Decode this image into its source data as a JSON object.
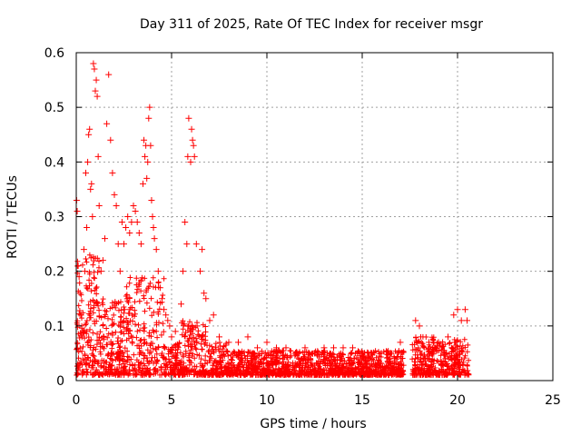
{
  "chart_data": {
    "type": "scatter",
    "title": "Day 311 of 2025, Rate Of TEC Index for receiver msgr",
    "xlabel": "GPS time / hours",
    "ylabel": "ROTI / TECUs",
    "xlim": [
      0,
      25
    ],
    "ylim": [
      0,
      0.6
    ],
    "x_ticks": [
      0,
      5,
      10,
      15,
      20,
      25
    ],
    "x_tick_labels": [
      "0",
      "5",
      "10",
      "15",
      "20",
      "25"
    ],
    "y_ticks": [
      0,
      0.1,
      0.2,
      0.3,
      0.4,
      0.5,
      0.6
    ],
    "y_tick_labels": [
      "0",
      "0.1",
      "0.2",
      "0.3",
      "0.4",
      "0.5",
      "0.6"
    ],
    "grid": true,
    "marker": "+",
    "marker_color": "#ff0000",
    "series": [
      {
        "name": "ROTI",
        "points": [
          [
            0.02,
            0.33
          ],
          [
            0.05,
            0.31
          ],
          [
            0.1,
            0.21
          ],
          [
            0.15,
            0.19
          ],
          [
            0.2,
            0.16
          ],
          [
            0.25,
            0.12
          ],
          [
            0.3,
            0.08
          ],
          [
            0.35,
            0.09
          ],
          [
            0.4,
            0.24
          ],
          [
            0.45,
            0.2
          ],
          [
            0.5,
            0.38
          ],
          [
            0.55,
            0.28
          ],
          [
            0.6,
            0.4
          ],
          [
            0.65,
            0.45
          ],
          [
            0.7,
            0.46
          ],
          [
            0.75,
            0.35
          ],
          [
            0.8,
            0.36
          ],
          [
            0.85,
            0.3
          ],
          [
            0.9,
            0.58
          ],
          [
            0.95,
            0.57
          ],
          [
            1.0,
            0.53
          ],
          [
            1.05,
            0.55
          ],
          [
            1.1,
            0.52
          ],
          [
            1.15,
            0.41
          ],
          [
            1.2,
            0.32
          ],
          [
            1.3,
            0.2
          ],
          [
            1.4,
            0.22
          ],
          [
            1.5,
            0.26
          ],
          [
            1.6,
            0.47
          ],
          [
            1.7,
            0.56
          ],
          [
            1.8,
            0.44
          ],
          [
            1.9,
            0.38
          ],
          [
            2.0,
            0.34
          ],
          [
            2.1,
            0.32
          ],
          [
            2.2,
            0.25
          ],
          [
            2.3,
            0.2
          ],
          [
            2.4,
            0.29
          ],
          [
            2.5,
            0.25
          ],
          [
            2.6,
            0.28
          ],
          [
            2.7,
            0.3
          ],
          [
            2.8,
            0.27
          ],
          [
            2.9,
            0.29
          ],
          [
            3.0,
            0.32
          ],
          [
            3.1,
            0.31
          ],
          [
            3.2,
            0.29
          ],
          [
            3.3,
            0.27
          ],
          [
            3.4,
            0.25
          ],
          [
            3.5,
            0.36
          ],
          [
            3.55,
            0.44
          ],
          [
            3.6,
            0.41
          ],
          [
            3.65,
            0.43
          ],
          [
            3.7,
            0.37
          ],
          [
            3.75,
            0.4
          ],
          [
            3.8,
            0.48
          ],
          [
            3.85,
            0.5
          ],
          [
            3.9,
            0.43
          ],
          [
            3.95,
            0.33
          ],
          [
            4.0,
            0.3
          ],
          [
            4.05,
            0.28
          ],
          [
            4.1,
            0.26
          ],
          [
            4.2,
            0.24
          ],
          [
            4.3,
            0.2
          ],
          [
            4.4,
            0.17
          ],
          [
            4.5,
            0.15
          ],
          [
            4.6,
            0.13
          ],
          [
            4.7,
            0.12
          ],
          [
            4.8,
            0.11
          ],
          [
            4.9,
            0.1
          ],
          [
            5.0,
            0.08
          ],
          [
            5.2,
            0.09
          ],
          [
            5.5,
            0.14
          ],
          [
            5.6,
            0.2
          ],
          [
            5.7,
            0.29
          ],
          [
            5.8,
            0.25
          ],
          [
            5.85,
            0.41
          ],
          [
            5.9,
            0.48
          ],
          [
            6.0,
            0.4
          ],
          [
            6.05,
            0.46
          ],
          [
            6.1,
            0.44
          ],
          [
            6.15,
            0.43
          ],
          [
            6.2,
            0.41
          ],
          [
            6.3,
            0.25
          ],
          [
            6.5,
            0.2
          ],
          [
            6.6,
            0.24
          ],
          [
            6.7,
            0.16
          ],
          [
            6.8,
            0.15
          ],
          [
            7.0,
            0.11
          ],
          [
            7.2,
            0.12
          ],
          [
            7.5,
            0.08
          ],
          [
            8.0,
            0.07
          ],
          [
            8.5,
            0.07
          ],
          [
            9.0,
            0.08
          ],
          [
            9.5,
            0.06
          ],
          [
            10.0,
            0.07
          ],
          [
            10.5,
            0.06
          ],
          [
            11.0,
            0.06
          ],
          [
            11.5,
            0.05
          ],
          [
            12.0,
            0.06
          ],
          [
            12.5,
            0.05
          ],
          [
            13.0,
            0.06
          ],
          [
            13.5,
            0.06
          ],
          [
            14.0,
            0.06
          ],
          [
            14.5,
            0.06
          ],
          [
            15.0,
            0.05
          ],
          [
            15.5,
            0.05
          ],
          [
            16.0,
            0.05
          ],
          [
            16.5,
            0.05
          ],
          [
            17.0,
            0.07
          ],
          [
            17.8,
            0.11
          ],
          [
            18.0,
            0.1
          ],
          [
            18.5,
            0.07
          ],
          [
            19.0,
            0.07
          ],
          [
            19.5,
            0.08
          ],
          [
            19.8,
            0.12
          ],
          [
            20.0,
            0.13
          ],
          [
            20.2,
            0.11
          ],
          [
            20.4,
            0.13
          ],
          [
            20.5,
            0.11
          ]
        ]
      }
    ]
  }
}
